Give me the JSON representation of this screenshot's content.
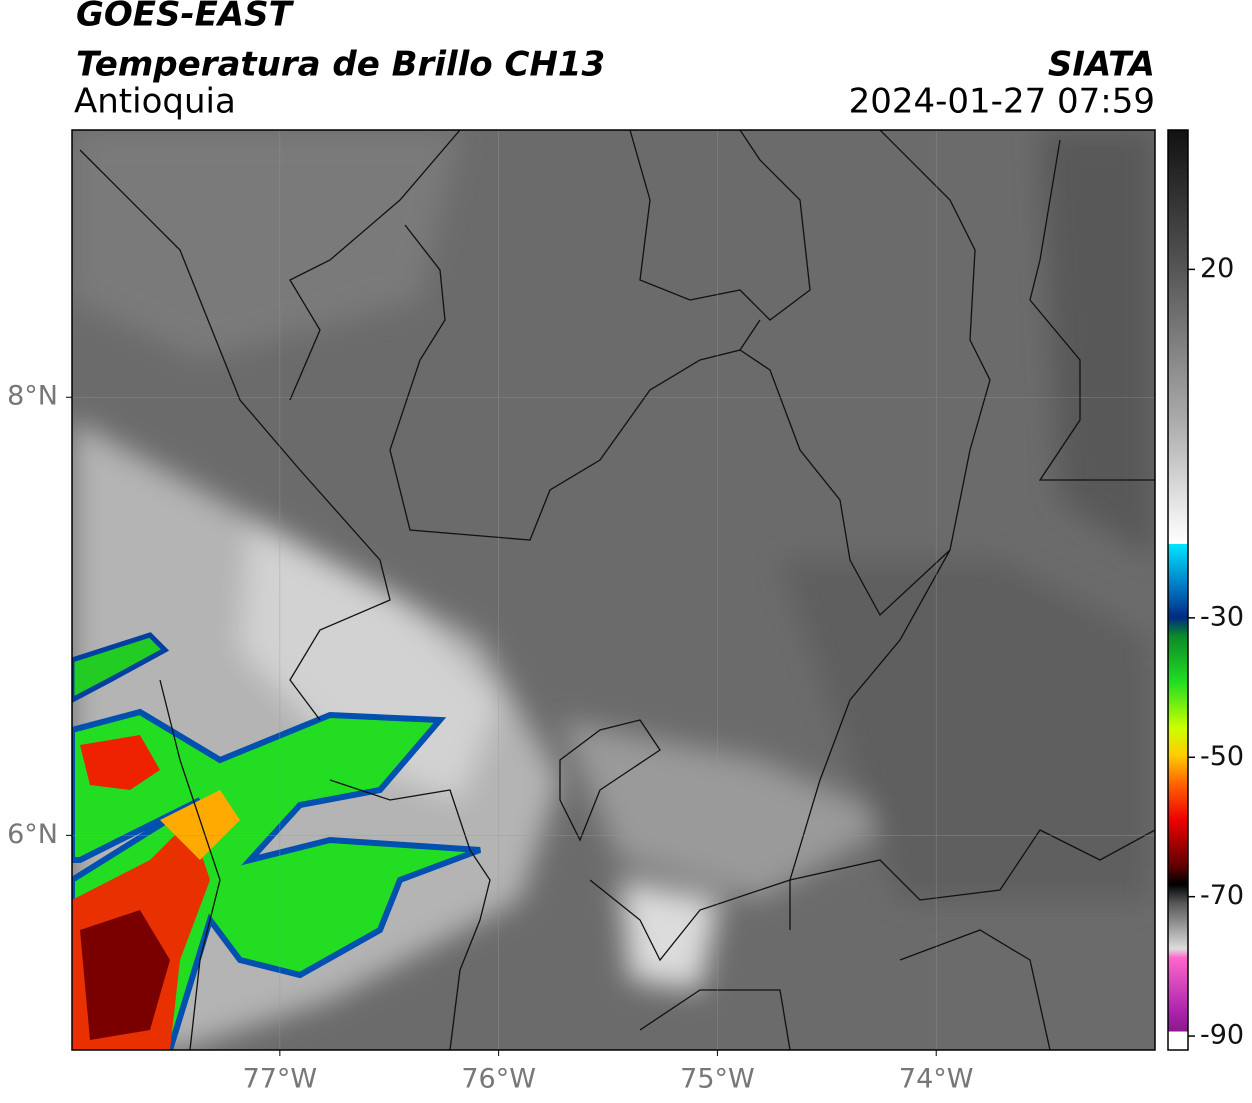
{
  "header": {
    "satellite": "GOES-EAST",
    "product": "Temperatura de Brillo CH13",
    "region": "Antioquia",
    "agency": "SIATA",
    "datetime": "2024-01-27 07:59"
  },
  "map": {
    "lonlim": [
      -77.95,
      -73.0
    ],
    "latlim": [
      5.02,
      9.22
    ],
    "lonticks": [
      {
        "value": -77,
        "label": "77°W"
      },
      {
        "value": -76,
        "label": "76°W"
      },
      {
        "value": -75,
        "label": "75°W"
      },
      {
        "value": -74,
        "label": "74°W"
      }
    ],
    "latticks": [
      {
        "value": 8,
        "label": "8°N"
      },
      {
        "value": 6,
        "label": "6°N"
      }
    ],
    "grid": true
  },
  "colorbar": {
    "lim": [
      -92,
      40
    ],
    "ticks": [
      20,
      -30,
      -50,
      -70,
      -90
    ]
  }
}
